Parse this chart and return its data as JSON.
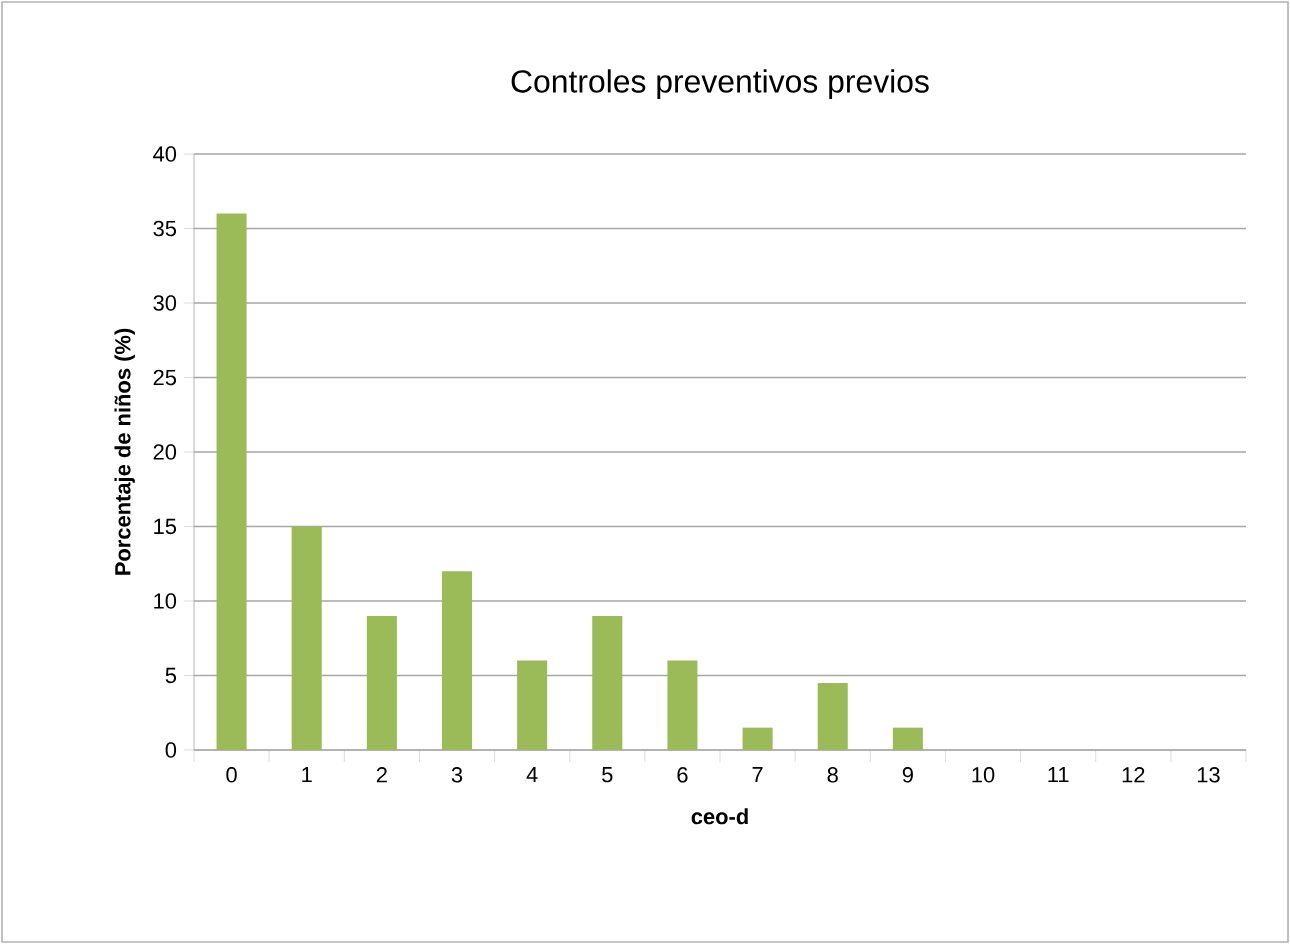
{
  "chart_data": {
    "type": "bar",
    "title": "Controles preventivos previos",
    "xlabel": "ceo-d",
    "ylabel": "Porcentaje de niños (%)",
    "categories": [
      "0",
      "1",
      "2",
      "3",
      "4",
      "5",
      "6",
      "7",
      "8",
      "9",
      "10",
      "11",
      "12",
      "13"
    ],
    "values": [
      36,
      15,
      9,
      12,
      6,
      9,
      6,
      1.5,
      4.5,
      1.5,
      0,
      0,
      0,
      0
    ],
    "color": "#9bbb59",
    "ylim": [
      0,
      40
    ],
    "yticks": [
      0,
      5,
      10,
      15,
      20,
      25,
      30,
      35,
      40
    ],
    "grid": "y"
  }
}
